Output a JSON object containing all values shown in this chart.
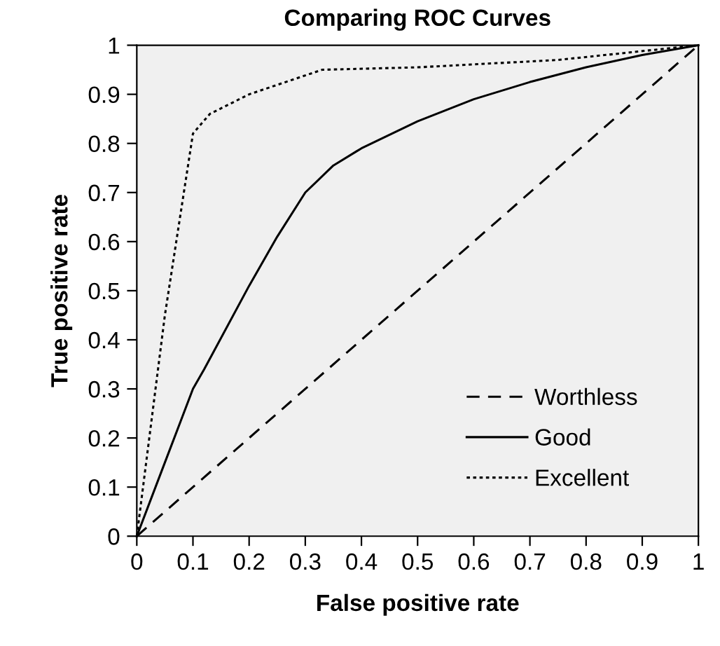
{
  "chart_data": {
    "type": "line",
    "title": "Comparing ROC Curves",
    "xlabel": "False positive rate",
    "ylabel": "True positive rate",
    "xlim": [
      0,
      1
    ],
    "ylim": [
      0,
      1
    ],
    "xticks": [
      0,
      0.1,
      0.2,
      0.3,
      0.4,
      0.5,
      0.6,
      0.7,
      0.8,
      0.9,
      1
    ],
    "yticks": [
      0,
      0.1,
      0.2,
      0.3,
      0.4,
      0.5,
      0.6,
      0.7,
      0.8,
      0.9,
      1
    ],
    "grid": false,
    "legend": "bottom right",
    "marker": "none",
    "series": [
      {
        "name": "Worthless",
        "color": "#000000",
        "line_style": "dashed",
        "x": [
          0,
          1
        ],
        "values": [
          0,
          1
        ]
      },
      {
        "name": "Good",
        "color": "#000000",
        "line_style": "solid",
        "x": [
          0,
          0.05,
          0.1,
          0.12,
          0.2,
          0.25,
          0.3,
          0.35,
          0.4,
          0.5,
          0.6,
          0.7,
          0.8,
          0.9,
          1
        ],
        "values": [
          0,
          0.15,
          0.3,
          0.34,
          0.51,
          0.61,
          0.7,
          0.755,
          0.79,
          0.845,
          0.89,
          0.925,
          0.955,
          0.98,
          1
        ]
      },
      {
        "name": "Excellent",
        "color": "#000000",
        "line_style": "dotted",
        "x": [
          0,
          0.05,
          0.1,
          0.13,
          0.2,
          0.33,
          0.5,
          0.75,
          1
        ],
        "values": [
          0,
          0.45,
          0.82,
          0.86,
          0.9,
          0.95,
          0.955,
          0.97,
          1
        ]
      }
    ]
  }
}
